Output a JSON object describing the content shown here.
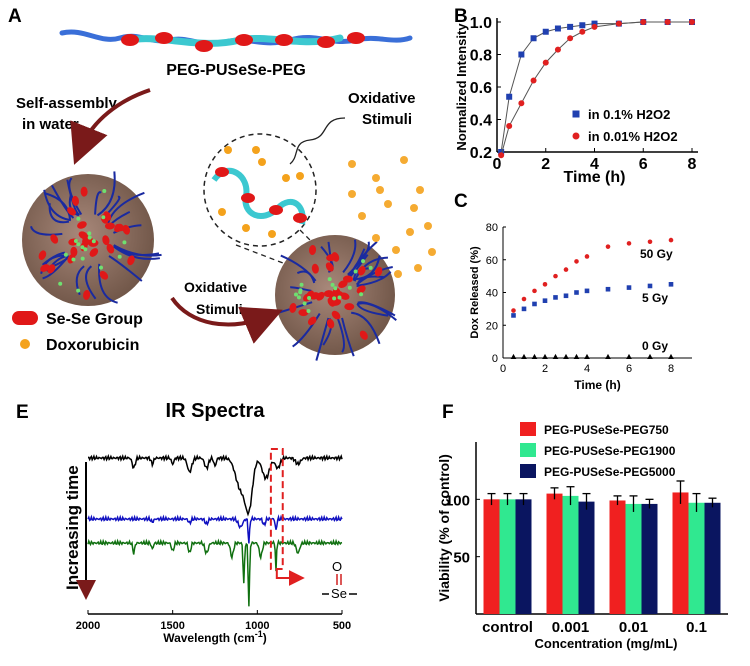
{
  "panel_letters": {
    "a": "A",
    "b": "B",
    "c": "C",
    "e": "E",
    "f": "F"
  },
  "panel_a": {
    "polymer_label": "PEG-PUSeSe-PEG",
    "self_assembly_1": "Self-assembly",
    "self_assembly_2": "in water",
    "oxidative_1": "Oxidative",
    "stimuli_1": "Stimuli",
    "oxidative_2": "Oxidative",
    "stimuli_2": "Stimuli",
    "legend_se": "Se-Se Group",
    "legend_dox": "Doxorubicin",
    "colors": {
      "peg": "#3a6fd8",
      "se": "#e01818",
      "linker": "#3cc8d0",
      "dox": "#f4a21c",
      "core": "#8a6a5a",
      "arrow": "#7a1a1a"
    }
  },
  "panel_e": {
    "title": "IR Spectra",
    "side_label": "Increasing time",
    "se_o": "O",
    "se_se": "Se"
  },
  "chart_data": [
    {
      "id": "B",
      "type": "line",
      "xlabel": "Time (h)",
      "ylabel": "Normalized Intensity",
      "xlim": [
        0,
        8
      ],
      "ylim": [
        0.2,
        1.0
      ],
      "xticks": [
        "0",
        "2",
        "4",
        "6",
        "8"
      ],
      "yticks": [
        "0.2",
        "0.4",
        "0.6",
        "0.8",
        "1.0"
      ],
      "series": [
        {
          "name": "in 0.1% H2O2",
          "color": "#2040b0",
          "marker": "square",
          "x": [
            0.17,
            0.5,
            1,
            1.5,
            2,
            2.5,
            3,
            3.5,
            4,
            5,
            6,
            7,
            8
          ],
          "values": [
            0.2,
            0.54,
            0.8,
            0.9,
            0.94,
            0.96,
            0.97,
            0.98,
            0.99,
            0.99,
            1.0,
            1.0,
            1.0
          ]
        },
        {
          "name": "in 0.01% H2O2",
          "color": "#e02020",
          "marker": "circle",
          "x": [
            0.17,
            0.5,
            1,
            1.5,
            2,
            2.5,
            3,
            3.5,
            4,
            5,
            6,
            7,
            8
          ],
          "values": [
            0.18,
            0.36,
            0.5,
            0.64,
            0.75,
            0.83,
            0.9,
            0.94,
            0.97,
            0.99,
            1.0,
            1.0,
            1.0
          ]
        }
      ]
    },
    {
      "id": "C",
      "type": "scatter",
      "xlabel": "Time (h)",
      "ylabel": "Dox Released (%)",
      "xlim": [
        0,
        9
      ],
      "ylim": [
        0,
        80
      ],
      "xticks": [
        "0",
        "2",
        "4",
        "6",
        "8"
      ],
      "yticks": [
        "0",
        "20",
        "40",
        "60",
        "80"
      ],
      "series": [
        {
          "name": "50 Gy",
          "color": "#e02020",
          "marker": "circle",
          "x": [
            0.5,
            1,
            1.5,
            2,
            2.5,
            3,
            3.5,
            4,
            5,
            6,
            7,
            8
          ],
          "values": [
            29,
            36,
            41,
            45,
            50,
            54,
            59,
            62,
            68,
            70,
            71,
            72
          ]
        },
        {
          "name": "5 Gy",
          "color": "#2040b0",
          "marker": "square",
          "x": [
            0.5,
            1,
            1.5,
            2,
            2.5,
            3,
            3.5,
            4,
            5,
            6,
            7,
            8
          ],
          "values": [
            26,
            30,
            33,
            35,
            37,
            38,
            40,
            41,
            42,
            43,
            44,
            45
          ]
        },
        {
          "name": "0 Gy",
          "color": "#000000",
          "marker": "triangle",
          "x": [
            0.5,
            1,
            1.5,
            2,
            2.5,
            3,
            3.5,
            4,
            5,
            6,
            7,
            8
          ],
          "values": [
            0.5,
            0.5,
            0.5,
            0.5,
            0.5,
            0.5,
            0.5,
            0.5,
            0.5,
            0.5,
            0.5,
            0.5
          ]
        }
      ]
    },
    {
      "id": "E",
      "type": "line",
      "title": "IR Spectra",
      "xlabel": "Wavelength (cm-1)",
      "xlabel_main": "Wavelength (cm",
      "xlabel_sup": "-1",
      "xlabel_end": ")",
      "xlim": [
        2000,
        500
      ],
      "xticks": [
        "2000",
        "1500",
        "1000",
        "500"
      ],
      "series": [
        {
          "name": "spectrum 1",
          "color": "#000000"
        },
        {
          "name": "spectrum 2",
          "color": "#1010c0"
        },
        {
          "name": "spectrum 3",
          "color": "#107010"
        }
      ],
      "annotation": "Se=O"
    },
    {
      "id": "F",
      "type": "bar",
      "xlabel": "Concentration (mg/mL)",
      "ylabel": "Viability (% of control)",
      "ylim": [
        0,
        150
      ],
      "yticks": [
        "50",
        "100"
      ],
      "categories": [
        "control",
        "0.001",
        "0.01",
        "0.1"
      ],
      "series": [
        {
          "name": "PEG-PUSeSe-PEG750",
          "color": "#f02020",
          "values": [
            100,
            105,
            99,
            106
          ],
          "errors": [
            5,
            5,
            4,
            10
          ]
        },
        {
          "name": "PEG-PUSeSe-PEG1900",
          "color": "#30e890",
          "values": [
            100,
            103,
            96,
            97
          ],
          "errors": [
            5,
            8,
            7,
            8
          ]
        },
        {
          "name": "PEG-PUSeSe-PEG5000",
          "color": "#0a1560",
          "values": [
            100,
            98,
            96,
            97
          ],
          "errors": [
            5,
            7,
            4,
            4
          ]
        }
      ]
    }
  ]
}
